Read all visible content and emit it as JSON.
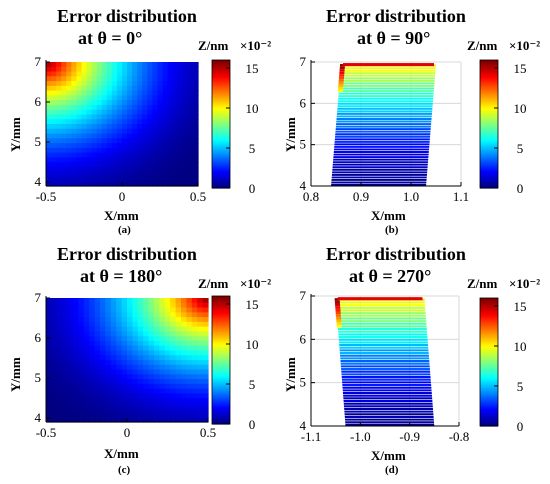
{
  "chart_data": [
    {
      "type": "heatmap",
      "panel": "(a)",
      "title_line1": "Error distribution",
      "title_line2": "at θ = 0°",
      "xlabel": "X/mm",
      "ylabel": "Y/mm",
      "xlim": [
        -0.5,
        0.5
      ],
      "ylim": [
        3.9,
        7.0
      ],
      "xticks": [
        "-0.5",
        "0",
        "0.5"
      ],
      "yticks": [
        "4",
        "5",
        "6",
        "7"
      ],
      "colorbar": {
        "label": "Z/nm",
        "scale": "×10⁻²",
        "ticks": [
          "0",
          "5",
          "10",
          "15"
        ],
        "range": [
          0,
          16
        ]
      },
      "field": {
        "peak_corner": "top-left",
        "peak_value": 16,
        "min_value": 0
      }
    },
    {
      "type": "heatmap",
      "panel": "(b)",
      "title_line1": "Error distribution",
      "title_line2": "at θ = 90°",
      "xlabel": "X/mm",
      "ylabel": "Y/mm",
      "xlim": [
        0.8,
        1.1
      ],
      "ylim": [
        4.0,
        7.0
      ],
      "xticks": [
        "0.8",
        "0.9",
        "1.0",
        "1.1"
      ],
      "yticks": [
        "4",
        "5",
        "6",
        "7"
      ],
      "colorbar": {
        "label": "Z/nm",
        "scale": "×10⁻²",
        "ticks": [
          "0",
          "5",
          "10",
          "15"
        ],
        "range": [
          0,
          16
        ]
      },
      "field": {
        "shape": "parallelogram",
        "x_bottom": [
          0.84,
          1.03
        ],
        "x_top": [
          0.86,
          1.05
        ],
        "peak_edge": "top",
        "peak_value": 16
      }
    },
    {
      "type": "heatmap",
      "panel": "(c)",
      "title_line1": "Error distribution",
      "title_line2": "at θ = 180°",
      "xlabel": "X/mm",
      "ylabel": "Y/mm",
      "xlim": [
        -0.5,
        0.5
      ],
      "ylim": [
        3.9,
        7.0
      ],
      "xticks": [
        "-0.5",
        "0",
        "0.5"
      ],
      "yticks": [
        "4",
        "5",
        "6",
        "7"
      ],
      "colorbar": {
        "label": "Z/nm",
        "scale": "×10⁻²",
        "ticks": [
          "0",
          "5",
          "10",
          "15"
        ],
        "range": [
          0,
          16
        ]
      },
      "field": {
        "peak_corner": "top-right",
        "peak_value": 16,
        "min_value": 0
      }
    },
    {
      "type": "heatmap",
      "panel": "(d)",
      "title_line1": "Error distribution",
      "title_line2": "at θ = 270°",
      "xlabel": "X/mm",
      "ylabel": "Y/mm",
      "xlim": [
        -1.1,
        -0.8
      ],
      "ylim": [
        4.0,
        7.0
      ],
      "xticks": [
        "-1.1",
        "-1.0",
        "-0.9",
        "-0.8"
      ],
      "yticks": [
        "4",
        "5",
        "6",
        "7"
      ],
      "colorbar": {
        "label": "Z/nm",
        "scale": "×10⁻²",
        "ticks": [
          "0",
          "5",
          "10",
          "15"
        ],
        "range": [
          0,
          16
        ]
      },
      "field": {
        "shape": "parallelogram",
        "x_bottom": [
          -1.03,
          -0.85
        ],
        "x_top": [
          -1.05,
          -0.87
        ],
        "peak_edge": "top",
        "peak_value": 16
      }
    }
  ]
}
